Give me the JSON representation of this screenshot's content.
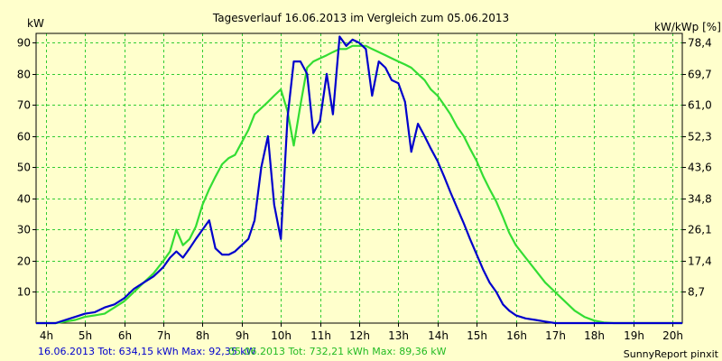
{
  "chart_data": {
    "type": "line",
    "title": "Tagesverlauf 16.06.2013 im Vergleich zum 05.06.2013",
    "ylabel_left": "kW",
    "ylabel_right": "kW/kWp [%]",
    "xlabel": "",
    "x_unit": "hour",
    "xlim": [
      3.75,
      20.25
    ],
    "ylim": [
      0,
      93
    ],
    "x_ticks": [
      4,
      5,
      6,
      7,
      8,
      9,
      10,
      11,
      12,
      13,
      14,
      15,
      16,
      17,
      18,
      19,
      20
    ],
    "x_tick_labels": [
      "4h",
      "5h",
      "6h",
      "7h",
      "8h",
      "9h",
      "10h",
      "11h",
      "12h",
      "13h",
      "14h",
      "15h",
      "16h",
      "17h",
      "18h",
      "19h",
      "20h"
    ],
    "y_left_ticks": [
      10,
      20,
      30,
      40,
      50,
      60,
      70,
      80,
      90
    ],
    "y_left_tick_labels": [
      "10",
      "20",
      "30",
      "40",
      "50",
      "60",
      "70",
      "80",
      "90"
    ],
    "y_right_ticks": [
      10,
      20,
      30,
      40,
      50,
      60,
      70,
      80,
      90
    ],
    "y_right_tick_labels": [
      "8,7",
      "17,4",
      "26,1",
      "34,8",
      "43,6",
      "52,3",
      "61,0",
      "69,7",
      "78,4"
    ],
    "grid": true,
    "colors": {
      "background": "#FFFFCC",
      "grid": "#33CC33",
      "axis": "#000000",
      "series_1": "#0000CC",
      "series_2": "#33DD33"
    },
    "series": [
      {
        "name": "16.06.2013",
        "color": "#0000CC",
        "x": [
          3.75,
          4.25,
          4.5,
          4.75,
          5.0,
          5.25,
          5.5,
          5.75,
          6.0,
          6.25,
          6.5,
          6.75,
          7.0,
          7.17,
          7.33,
          7.5,
          7.67,
          7.83,
          8.0,
          8.17,
          8.33,
          8.5,
          8.67,
          8.83,
          9.0,
          9.17,
          9.33,
          9.5,
          9.67,
          9.83,
          10.0,
          10.17,
          10.33,
          10.5,
          10.67,
          10.83,
          11.0,
          11.17,
          11.33,
          11.5,
          11.67,
          11.83,
          12.0,
          12.17,
          12.33,
          12.5,
          12.67,
          12.83,
          13.0,
          13.17,
          13.33,
          13.5,
          13.67,
          13.83,
          14.0,
          14.17,
          14.33,
          14.5,
          14.67,
          14.83,
          15.0,
          15.17,
          15.33,
          15.5,
          15.67,
          15.83,
          16.0,
          16.25,
          16.5,
          16.75,
          17.0,
          17.25,
          17.5,
          17.75,
          18.0,
          18.25,
          18.5,
          18.75,
          19.0,
          19.25,
          19.5,
          19.75,
          20.0,
          20.25
        ],
        "y": [
          0,
          0,
          1,
          2,
          3,
          3.5,
          5,
          6,
          8,
          11,
          13,
          15,
          18,
          21,
          23,
          21,
          24,
          27,
          30,
          33,
          24,
          22,
          22,
          23,
          25,
          27,
          33,
          50,
          60,
          38,
          27,
          66,
          84,
          84,
          80,
          61,
          65,
          80,
          67,
          92,
          89,
          91,
          90,
          88,
          73,
          84,
          82,
          78,
          77,
          71,
          55,
          64,
          60,
          56,
          52,
          47,
          42,
          37,
          32,
          27,
          22,
          17,
          13,
          10,
          6,
          4,
          2.5,
          1.5,
          1,
          0.5,
          0,
          0,
          0,
          0,
          0,
          0,
          0,
          0,
          0,
          0,
          0,
          0,
          0,
          0
        ],
        "stats": "16.06.2013 Tot: 634,15 kWh Max: 92,35 kW"
      },
      {
        "name": "05.06.2013",
        "color": "#33DD33",
        "x": [
          3.75,
          4.25,
          4.5,
          4.75,
          5.0,
          5.25,
          5.5,
          5.75,
          6.0,
          6.25,
          6.5,
          6.75,
          7.0,
          7.17,
          7.33,
          7.5,
          7.67,
          7.83,
          8.0,
          8.17,
          8.33,
          8.5,
          8.67,
          8.83,
          9.0,
          9.17,
          9.33,
          9.5,
          9.67,
          9.83,
          10.0,
          10.17,
          10.33,
          10.5,
          10.67,
          10.83,
          11.0,
          11.17,
          11.33,
          11.5,
          11.67,
          11.83,
          12.0,
          12.17,
          12.33,
          12.5,
          12.67,
          12.83,
          13.0,
          13.17,
          13.33,
          13.5,
          13.67,
          13.83,
          14.0,
          14.17,
          14.33,
          14.5,
          14.67,
          14.83,
          15.0,
          15.17,
          15.33,
          15.5,
          15.67,
          15.83,
          16.0,
          16.25,
          16.5,
          16.75,
          17.0,
          17.25,
          17.5,
          17.75,
          18.0,
          18.25,
          18.5,
          18.75,
          19.0,
          19.25,
          19.5,
          19.75,
          20.0,
          20.25
        ],
        "y": [
          0,
          0,
          0.5,
          1,
          2,
          2.5,
          3,
          5,
          7,
          10,
          13,
          16,
          20,
          23,
          30,
          25,
          27,
          31,
          38,
          43,
          47,
          51,
          53,
          54,
          58,
          62,
          67,
          69,
          71,
          73,
          75,
          68,
          57,
          70,
          82,
          84,
          85,
          86,
          87,
          88,
          88,
          89,
          89,
          89,
          88,
          87,
          86,
          85,
          84,
          83,
          82,
          80,
          78,
          75,
          73,
          70,
          67,
          63,
          60,
          56,
          52,
          47,
          43,
          39,
          34,
          29,
          25,
          21,
          17,
          13,
          10,
          7,
          4,
          2,
          0.8,
          0.2,
          0,
          0,
          0,
          0,
          0,
          0,
          0,
          0
        ],
        "stats": "05.06.2013 Tot: 732,21 kWh Max: 89,36 kW"
      }
    ],
    "footer_right": "SunnyReport pinxit"
  }
}
